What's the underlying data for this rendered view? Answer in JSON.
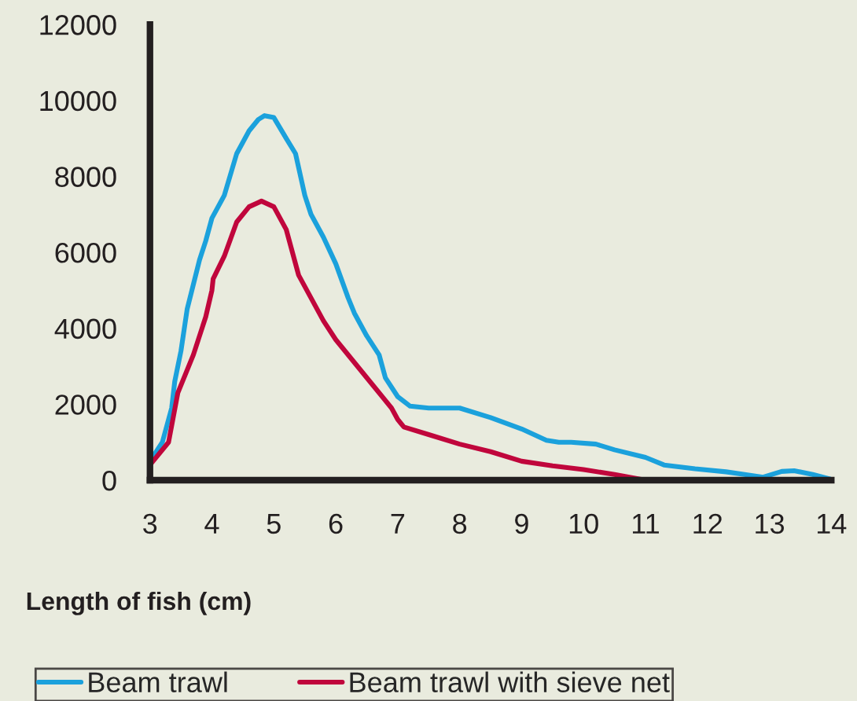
{
  "chart_data": {
    "type": "line",
    "xlabel": "Length of fish (cm)",
    "xlim": [
      3,
      14
    ],
    "xticks": [
      3,
      4,
      5,
      6,
      7,
      8,
      9,
      10,
      11,
      12,
      13,
      14
    ],
    "ylim": [
      0,
      12000
    ],
    "yticks": [
      0,
      2000,
      4000,
      6000,
      8000,
      10000,
      12000
    ],
    "grid": false,
    "legend": "bottom",
    "marker": "none",
    "line_style": "solid",
    "series": [
      {
        "name": "Beam trawl",
        "color": "#1ba1dc",
        "x": [
          3.0,
          3.2,
          3.35,
          3.4,
          3.5,
          3.6,
          3.8,
          3.9,
          4.0,
          4.2,
          4.4,
          4.5,
          4.6,
          4.75,
          4.85,
          5.0,
          5.2,
          5.35,
          5.5,
          5.6,
          5.8,
          6.0,
          6.2,
          6.3,
          6.5,
          6.7,
          6.8,
          7.0,
          7.2,
          7.5,
          8.0,
          8.5,
          9.0,
          9.4,
          9.6,
          9.8,
          10.2,
          10.5,
          11.0,
          11.3,
          11.8,
          12.3,
          12.6,
          12.9,
          13.2,
          13.4,
          13.7,
          14.0
        ],
        "values": [
          500,
          1000,
          1900,
          2600,
          3400,
          4500,
          5800,
          6300,
          6900,
          7500,
          8600,
          8900,
          9200,
          9500,
          9600,
          9550,
          9000,
          8600,
          7500,
          7000,
          6400,
          5700,
          4800,
          4400,
          3800,
          3300,
          2700,
          2200,
          1950,
          1900,
          1900,
          1650,
          1350,
          1050,
          1000,
          1000,
          950,
          800,
          600,
          400,
          300,
          220,
          150,
          80,
          230,
          250,
          150,
          20
        ]
      },
      {
        "name": "Beam trawl with sieve net",
        "color": "#c0063c",
        "x": [
          3.0,
          3.3,
          3.45,
          3.7,
          3.9,
          4.0,
          4.02,
          4.2,
          4.4,
          4.6,
          4.8,
          5.0,
          5.2,
          5.3,
          5.4,
          5.6,
          5.8,
          6.0,
          6.3,
          6.6,
          6.9,
          7.0,
          7.1,
          7.5,
          8.0,
          8.5,
          9.0,
          9.5,
          10.0,
          10.5,
          11.0
        ],
        "values": [
          400,
          1000,
          2300,
          3300,
          4300,
          5000,
          5300,
          5900,
          6800,
          7200,
          7350,
          7200,
          6600,
          6000,
          5400,
          4800,
          4200,
          3700,
          3100,
          2500,
          1900,
          1600,
          1400,
          1200,
          950,
          750,
          500,
          380,
          280,
          150,
          0
        ]
      }
    ]
  }
}
